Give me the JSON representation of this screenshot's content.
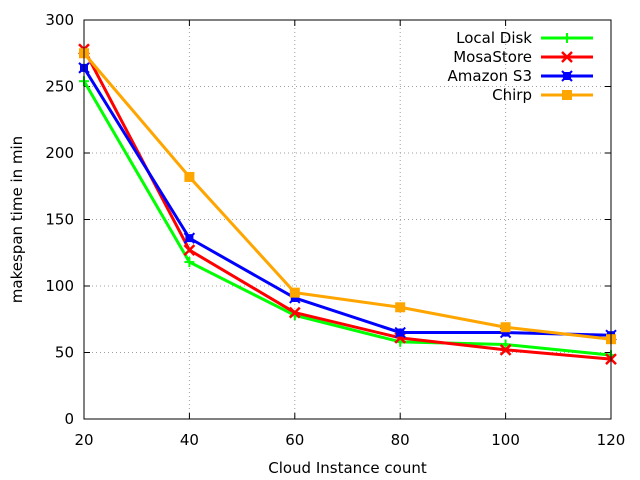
{
  "chart_data": {
    "type": "line",
    "title": "",
    "xlabel": "Cloud Instance count",
    "ylabel": "makespan time in min",
    "x": [
      20,
      40,
      60,
      80,
      100,
      120
    ],
    "xlim": [
      20,
      120
    ],
    "ylim": [
      0,
      300
    ],
    "xticks": [
      "20",
      "40",
      "60",
      "80",
      "100",
      "120"
    ],
    "yticks": [
      "0",
      "50",
      "100",
      "150",
      "200",
      "250",
      "300"
    ],
    "grid": true,
    "legend_position": "top-right",
    "series": [
      {
        "name": "Local Disk",
        "color": "#00ff00",
        "marker": "plus",
        "values": [
          254,
          118,
          78,
          58,
          56,
          48
        ]
      },
      {
        "name": "MosaStore",
        "color": "#ff0000",
        "marker": "cross",
        "values": [
          278,
          127,
          80,
          61,
          52,
          45
        ]
      },
      {
        "name": "Amazon S3",
        "color": "#0000ff",
        "marker": "square-cross",
        "values": [
          264,
          136,
          91,
          65,
          65,
          63
        ]
      },
      {
        "name": "Chirp",
        "color": "#ffa500",
        "marker": "filled-square",
        "values": [
          275,
          182,
          95,
          84,
          69,
          60
        ]
      }
    ]
  }
}
